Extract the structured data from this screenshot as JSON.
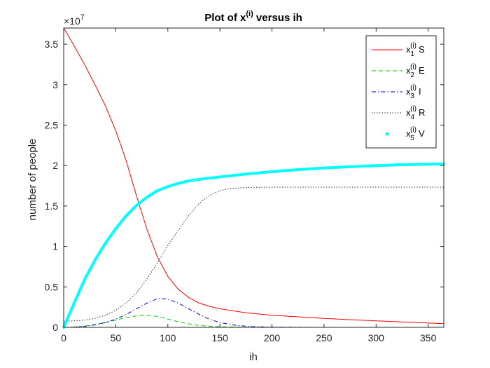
{
  "chart_data": {
    "type": "line",
    "title": "Plot of x^(i) versus ih",
    "title_parts": {
      "base": "Plot of x",
      "superscript": "(i)",
      "rest": " versus ih"
    },
    "xlabel": "ih",
    "ylabel": "number of people",
    "y_exponent_label": "×10",
    "y_exponent_power": "7",
    "xlim": [
      0,
      365
    ],
    "ylim": [
      0,
      37000000
    ],
    "x_ticks": [
      0,
      50,
      100,
      150,
      200,
      250,
      300,
      350
    ],
    "x_tick_labels": [
      "0",
      "50",
      "100",
      "150",
      "200",
      "250",
      "300",
      "350"
    ],
    "y_ticks": [
      0,
      5000000,
      10000000,
      15000000,
      20000000,
      25000000,
      30000000,
      35000000
    ],
    "y_tick_labels": [
      "0",
      "0.5",
      "1",
      "1.5",
      "2",
      "2.5",
      "3",
      "3.5"
    ],
    "grid": false,
    "legend_position": "top-right",
    "series": [
      {
        "name": "S",
        "legend_base": "x",
        "legend_sub": "1",
        "legend_sup": "(i)",
        "legend_suffix": "S",
        "color": "#ff0000",
        "style": "solid",
        "x": [
          0,
          10,
          20,
          30,
          40,
          50,
          60,
          70,
          80,
          90,
          100,
          110,
          120,
          130,
          140,
          150,
          175,
          200,
          250,
          300,
          365
        ],
        "y": [
          37000000,
          34800000,
          32500000,
          30000000,
          27400000,
          24300000,
          20600000,
          16200000,
          12100000,
          8700000,
          6300000,
          4700000,
          3700000,
          3000000,
          2600000,
          2300000,
          1800000,
          1500000,
          1100000,
          800000,
          450000
        ]
      },
      {
        "name": "E",
        "legend_base": "x",
        "legend_sub": "2",
        "legend_sup": "(i)",
        "legend_suffix": "E",
        "color": "#00cc00",
        "style": "dashed",
        "x": [
          0,
          10,
          20,
          30,
          40,
          50,
          60,
          70,
          77,
          85,
          95,
          105,
          115,
          125,
          135,
          150,
          175,
          200,
          250,
          300,
          365
        ],
        "y": [
          0,
          40000,
          150000,
          350000,
          600000,
          900000,
          1200000,
          1420000,
          1500000,
          1450000,
          1200000,
          850000,
          550000,
          320000,
          180000,
          70000,
          20000,
          5000,
          0,
          0,
          0
        ]
      },
      {
        "name": "I",
        "legend_base": "x",
        "legend_sub": "3",
        "legend_sup": "(i)",
        "legend_suffix": "I",
        "color": "#0000cc",
        "style": "dashdot",
        "x": [
          0,
          10,
          20,
          30,
          40,
          50,
          60,
          70,
          80,
          90,
          100,
          110,
          120,
          130,
          140,
          150,
          165,
          180,
          200,
          250,
          300,
          365
        ],
        "y": [
          0,
          30000,
          120000,
          300000,
          600000,
          1000000,
          1600000,
          2300000,
          3000000,
          3550000,
          3500000,
          3000000,
          2300000,
          1600000,
          1000000,
          600000,
          250000,
          100000,
          30000,
          0,
          0,
          0
        ]
      },
      {
        "name": "R",
        "legend_base": "x",
        "legend_sub": "4",
        "legend_sup": "(i)",
        "legend_suffix": "R",
        "color": "#000000",
        "style": "dotted",
        "x": [
          0,
          10,
          20,
          30,
          40,
          50,
          60,
          70,
          80,
          90,
          100,
          110,
          120,
          130,
          140,
          150,
          160,
          170,
          180,
          200,
          250,
          300,
          365
        ],
        "y": [
          750000,
          800000,
          900000,
          1100000,
          1500000,
          2100000,
          3000000,
          4300000,
          6000000,
          8000000,
          10100000,
          12000000,
          13800000,
          15300000,
          16300000,
          16900000,
          17150000,
          17250000,
          17300000,
          17330000,
          17330000,
          17330000,
          17330000
        ]
      },
      {
        "name": "V",
        "legend_base": "x",
        "legend_sub": "5",
        "legend_sup": "(i)",
        "legend_suffix": "V",
        "color": "#00ffff",
        "style": "thick",
        "x": [
          0,
          10,
          20,
          30,
          40,
          50,
          60,
          70,
          80,
          90,
          100,
          110,
          120,
          130,
          150,
          175,
          200,
          225,
          250,
          275,
          300,
          325,
          365
        ],
        "y": [
          0,
          3000000,
          5900000,
          8300000,
          10400000,
          12200000,
          13800000,
          15100000,
          16100000,
          16900000,
          17400000,
          17800000,
          18100000,
          18300000,
          18600000,
          18950000,
          19250000,
          19500000,
          19700000,
          19850000,
          20000000,
          20100000,
          20200000
        ]
      }
    ]
  }
}
